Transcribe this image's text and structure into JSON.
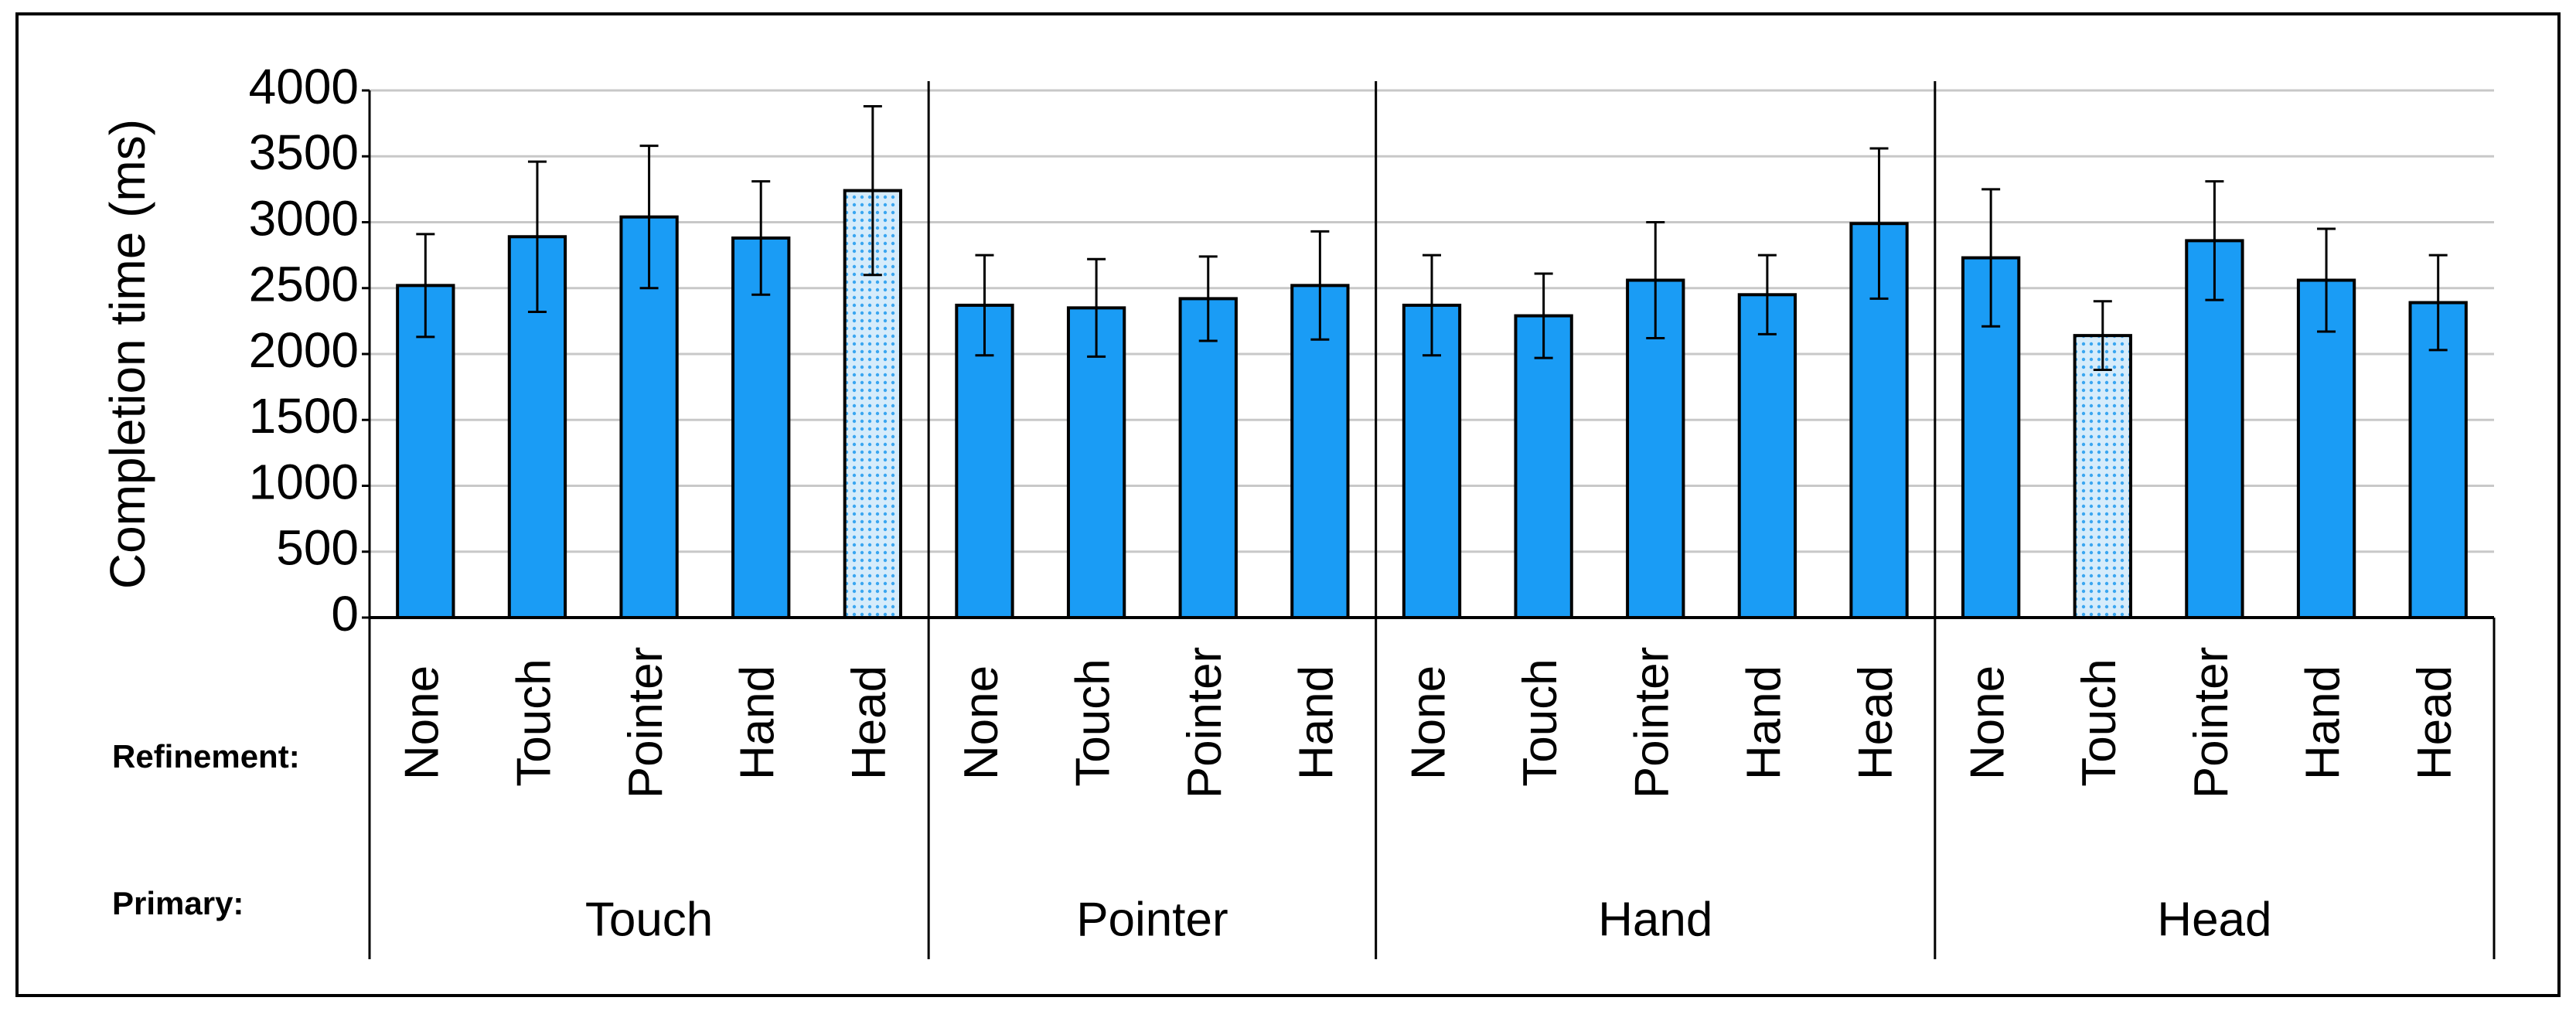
{
  "chart_data": {
    "type": "bar",
    "y_label": "Completion time (ms)",
    "ylim": [
      0,
      4000
    ],
    "yticks": [
      0,
      500,
      1000,
      1500,
      2000,
      2500,
      3000,
      3500,
      4000
    ],
    "grid": true,
    "color": "#1a9cf5",
    "row_labels": {
      "refinement": "Refinement:",
      "primary": "Primary:"
    },
    "groups": [
      {
        "name": "Touch",
        "categories": [
          "None",
          "Touch",
          "Pointer",
          "Hand",
          "Head"
        ],
        "values": [
          2520,
          2890,
          3040,
          2880,
          3240
        ],
        "errors": [
          390,
          570,
          540,
          430,
          640
        ],
        "patterned": [
          false,
          false,
          false,
          false,
          true
        ]
      },
      {
        "name": "Pointer",
        "categories": [
          "None",
          "Touch",
          "Pointer",
          "Hand"
        ],
        "values": [
          2370,
          2350,
          2420,
          2520
        ],
        "errors": [
          380,
          370,
          320,
          410
        ],
        "patterned": [
          false,
          false,
          false,
          false
        ]
      },
      {
        "name": "Hand",
        "categories": [
          "None",
          "Touch",
          "Pointer",
          "Hand",
          "Head"
        ],
        "values": [
          2370,
          2290,
          2560,
          2450,
          2990
        ],
        "errors": [
          380,
          320,
          440,
          300,
          570
        ],
        "patterned": [
          false,
          false,
          false,
          false,
          false
        ]
      },
      {
        "name": "Head",
        "categories": [
          "None",
          "Touch",
          "Pointer",
          "Hand",
          "Head"
        ],
        "values": [
          2730,
          2140,
          2860,
          2560,
          2390
        ],
        "errors": [
          520,
          260,
          450,
          390,
          360
        ],
        "patterned": [
          false,
          true,
          false,
          false,
          false
        ]
      }
    ]
  }
}
